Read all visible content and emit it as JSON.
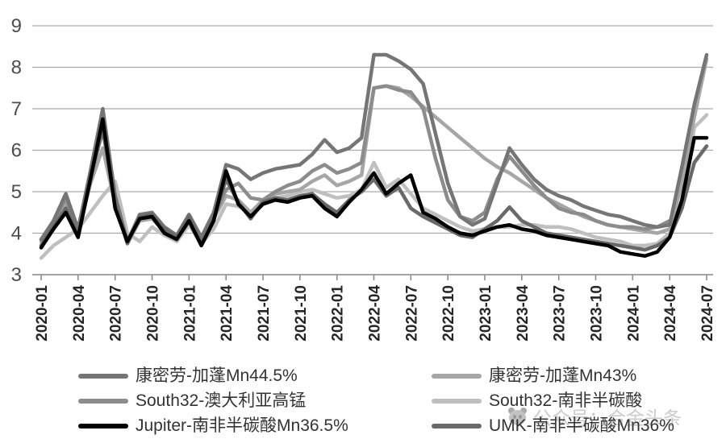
{
  "watermark": {
    "text": "公众号：合金头条",
    "icon": "panda-face-icon"
  },
  "chart_data": {
    "type": "line",
    "title": "",
    "xlabel": "",
    "ylabel": "",
    "ylim": [
      3,
      9
    ],
    "yticks": [
      3,
      4,
      5,
      6,
      7,
      8,
      9
    ],
    "grid": true,
    "legend_position": "bottom",
    "legend_columns": 2,
    "x_tick_every": 3,
    "x_tick_labels": [
      "2020-01",
      "2020-04",
      "2020-07",
      "2020-10",
      "2021-01",
      "2021-04",
      "2021-07",
      "2021-10",
      "2022-01",
      "2022-04",
      "2022-07",
      "2022-10",
      "2023-01",
      "2023-04",
      "2023-07",
      "2023-10",
      "2024-01",
      "2024-04",
      "2024-07"
    ],
    "x": [
      "2020-01",
      "2020-02",
      "2020-03",
      "2020-04",
      "2020-05",
      "2020-06",
      "2020-07",
      "2020-08",
      "2020-09",
      "2020-10",
      "2020-11",
      "2020-12",
      "2021-01",
      "2021-02",
      "2021-03",
      "2021-04",
      "2021-05",
      "2021-06",
      "2021-07",
      "2021-08",
      "2021-09",
      "2021-10",
      "2021-11",
      "2021-12",
      "2022-01",
      "2022-02",
      "2022-03",
      "2022-04",
      "2022-05",
      "2022-06",
      "2022-07",
      "2022-08",
      "2022-09",
      "2022-10",
      "2022-11",
      "2022-12",
      "2023-01",
      "2023-02",
      "2023-03",
      "2023-04",
      "2023-05",
      "2023-06",
      "2023-07",
      "2023-08",
      "2023-09",
      "2023-10",
      "2023-11",
      "2023-12",
      "2024-01",
      "2024-02",
      "2024-03",
      "2024-04",
      "2024-05",
      "2024-06",
      "2024-07"
    ],
    "series": [
      {
        "name": "康密劳-加蓬Mn44.5%",
        "color": "#757575",
        "values": [
          3.85,
          4.3,
          4.95,
          4.1,
          5.5,
          7.0,
          4.9,
          3.8,
          4.45,
          4.5,
          4.15,
          3.95,
          4.45,
          3.9,
          4.5,
          5.65,
          5.55,
          5.3,
          5.45,
          5.55,
          5.6,
          5.65,
          5.9,
          6.25,
          5.95,
          6.05,
          6.3,
          8.3,
          8.3,
          8.15,
          7.95,
          7.6,
          6.4,
          5.2,
          4.4,
          4.2,
          4.35,
          5.2,
          6.05,
          5.65,
          5.3,
          5.05,
          4.9,
          4.8,
          4.65,
          4.55,
          4.45,
          4.4,
          4.3,
          4.2,
          4.15,
          4.2,
          5.6,
          7.1,
          8.3
        ]
      },
      {
        "name": "康密劳-加蓬Mn43%",
        "color": "#a6a6a6",
        "values": [
          3.8,
          4.2,
          4.75,
          4.0,
          5.2,
          6.05,
          4.7,
          3.75,
          4.3,
          4.35,
          4.05,
          3.9,
          4.3,
          3.8,
          4.35,
          4.9,
          4.8,
          4.5,
          4.8,
          4.95,
          5.0,
          5.05,
          5.25,
          5.4,
          5.15,
          5.25,
          5.4,
          7.5,
          7.55,
          7.5,
          7.3,
          7.05,
          6.8,
          6.55,
          6.3,
          6.05,
          5.8,
          5.6,
          5.45,
          5.25,
          5.05,
          4.85,
          4.7,
          4.55,
          4.4,
          4.3,
          4.2,
          4.15,
          4.1,
          4.05,
          4.0,
          4.1,
          5.2,
          6.8,
          8.2
        ]
      },
      {
        "name": "South32-澳大利亚高锰",
        "color": "#8c8c8c",
        "values": [
          3.85,
          4.25,
          4.85,
          4.05,
          5.3,
          6.5,
          4.8,
          3.8,
          4.4,
          4.4,
          4.1,
          3.9,
          4.35,
          3.85,
          4.4,
          5.05,
          5.2,
          4.85,
          4.8,
          5.0,
          5.15,
          5.25,
          5.5,
          5.65,
          5.45,
          5.55,
          5.7,
          7.5,
          7.55,
          7.45,
          7.4,
          7.0,
          5.8,
          4.8,
          4.4,
          4.3,
          4.5,
          5.3,
          5.85,
          5.5,
          5.15,
          4.85,
          4.6,
          4.5,
          4.45,
          4.3,
          4.2,
          4.15,
          4.15,
          4.1,
          4.15,
          4.3,
          null,
          null,
          null
        ]
      },
      {
        "name": "South32-南非半碳酸",
        "color": "#bfbfbf",
        "values": [
          3.4,
          3.7,
          3.9,
          4.1,
          4.5,
          4.9,
          5.25,
          4.0,
          3.8,
          4.15,
          3.95,
          3.8,
          4.2,
          3.75,
          4.1,
          4.7,
          4.65,
          4.5,
          4.75,
          4.85,
          4.9,
          5.0,
          5.05,
          4.95,
          4.85,
          4.9,
          5.05,
          5.7,
          5.1,
          5.3,
          4.95,
          4.6,
          4.45,
          4.3,
          4.15,
          4.05,
          4.1,
          4.15,
          4.15,
          4.2,
          4.2,
          4.15,
          4.15,
          4.1,
          4.0,
          3.9,
          3.85,
          3.8,
          3.7,
          3.7,
          3.75,
          4.0,
          4.8,
          6.55,
          6.85
        ]
      },
      {
        "name": "Jupiter-南非半碳酸Mn36.5%",
        "color": "#000000",
        "values": [
          3.65,
          4.1,
          4.5,
          3.9,
          5.3,
          6.75,
          4.6,
          3.8,
          4.35,
          4.4,
          4.0,
          3.85,
          4.3,
          3.7,
          4.3,
          5.5,
          4.7,
          4.4,
          4.7,
          4.8,
          4.75,
          4.85,
          4.9,
          4.6,
          4.4,
          4.75,
          5.05,
          5.45,
          4.95,
          5.2,
          5.4,
          4.5,
          4.35,
          4.15,
          4.0,
          3.95,
          4.05,
          4.15,
          4.2,
          4.1,
          4.05,
          3.95,
          3.9,
          3.85,
          3.8,
          3.75,
          3.7,
          3.55,
          3.5,
          3.45,
          3.55,
          3.9,
          4.8,
          6.3,
          6.3
        ]
      },
      {
        "name": "UMK-南非半碳酸Mn36%",
        "color": "#696969",
        "values": [
          3.7,
          4.15,
          4.6,
          3.95,
          5.4,
          6.5,
          4.7,
          3.75,
          4.4,
          4.45,
          4.1,
          3.9,
          4.4,
          3.75,
          4.35,
          5.3,
          4.75,
          4.35,
          4.75,
          4.85,
          4.8,
          4.9,
          4.95,
          4.7,
          4.5,
          4.8,
          5.0,
          5.3,
          4.9,
          5.1,
          4.6,
          4.4,
          4.25,
          4.1,
          3.95,
          3.9,
          4.1,
          4.3,
          4.63,
          4.3,
          4.15,
          4.0,
          3.95,
          3.9,
          3.85,
          3.8,
          3.75,
          3.7,
          3.65,
          3.6,
          3.7,
          3.9,
          4.6,
          5.7,
          6.1
        ]
      }
    ]
  }
}
